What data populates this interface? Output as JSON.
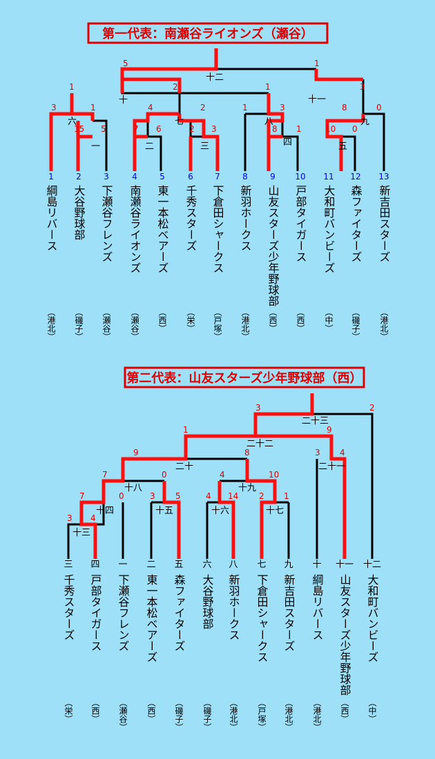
{
  "bracket1": {
    "title": "第一代表：南瀬谷ライオンズ（瀬谷）",
    "teams": [
      {
        "seed": "1",
        "name": "綱島リバース",
        "dist": "（港北）"
      },
      {
        "seed": "2",
        "name": "大谷野球部",
        "dist": "（磯子）"
      },
      {
        "seed": "3",
        "name": "下瀬谷フレンズ",
        "dist": "（瀬谷）"
      },
      {
        "seed": "4",
        "name": "南瀬谷ライオンズ",
        "dist": "（瀬谷）"
      },
      {
        "seed": "5",
        "name": "東一本松ベアーズ",
        "dist": "（西）"
      },
      {
        "seed": "6",
        "name": "千秀スターズ",
        "dist": "（栄）"
      },
      {
        "seed": "7",
        "name": "下倉田シャークス",
        "dist": "（戸塚）"
      },
      {
        "seed": "8",
        "name": "新羽ホークス",
        "dist": "（港北）"
      },
      {
        "seed": "9",
        "name": "山友スターズ少年野球部",
        "dist": "（西）"
      },
      {
        "seed": "10",
        "name": "戸部タイガース",
        "dist": "（西）"
      },
      {
        "seed": "11",
        "name": "大和町バンビーズ",
        "dist": "（中）"
      },
      {
        "seed": "12",
        "name": "森ファイターズ",
        "dist": "（磯子）"
      },
      {
        "seed": "13",
        "name": "新吉田スターズ",
        "dist": "（港北）"
      }
    ],
    "rounds": [
      "一",
      "二",
      "三",
      "四",
      "五",
      "六",
      "七",
      "八",
      "九",
      "十",
      "十一",
      "十二"
    ],
    "scores": [
      "15",
      "5",
      "7",
      "6",
      "2",
      "3",
      "8",
      "1",
      "10",
      "0",
      "3",
      "1",
      "4",
      "2",
      "3",
      "8",
      "0",
      "1",
      "2",
      "3",
      "1",
      "5",
      "1"
    ]
  },
  "bracket2": {
    "title": "第二代表：山友スターズ少年野球部（西）",
    "teams": [
      {
        "rnd": "三",
        "name": "千秀スターズ",
        "dist": "（栄）"
      },
      {
        "rnd": "四",
        "name": "戸部タイガース",
        "dist": "（西）"
      },
      {
        "rnd": "一",
        "name": "下瀬谷フレンズ",
        "dist": "（瀬谷）"
      },
      {
        "rnd": "二",
        "name": "東一本松ベアーズ",
        "dist": "（西）"
      },
      {
        "rnd": "五",
        "name": "森ファイターズ",
        "dist": "（磯子）"
      },
      {
        "rnd": "六",
        "name": "大谷野球部",
        "dist": "（磯子）"
      },
      {
        "rnd": "八",
        "name": "新羽ホークス",
        "dist": "（港北）"
      },
      {
        "rnd": "七",
        "name": "下倉田シャークス",
        "dist": "（戸塚）"
      },
      {
        "rnd": "九",
        "name": "新吉田スターズ",
        "dist": "（港北）"
      },
      {
        "rnd": "十",
        "name": "綱島リバース",
        "dist": "（港北）"
      },
      {
        "rnd": "十一",
        "name": "山友スターズ少年野球部",
        "dist": "（西）"
      },
      {
        "rnd": "十二",
        "name": "大和町バンビーズ",
        "dist": "（中）"
      }
    ],
    "rounds": [
      "十三",
      "十四",
      "十五",
      "十六",
      "十七",
      "十八",
      "十九",
      "二十",
      "二十一",
      "二十二",
      "二十三"
    ],
    "scores": [
      "3",
      "4",
      "7",
      "0",
      "3",
      "5",
      "4",
      "14",
      "2",
      "1",
      "7",
      "0",
      "4",
      "10",
      "9",
      "8",
      "3",
      "4",
      "1",
      "9",
      "3",
      "2"
    ]
  }
}
